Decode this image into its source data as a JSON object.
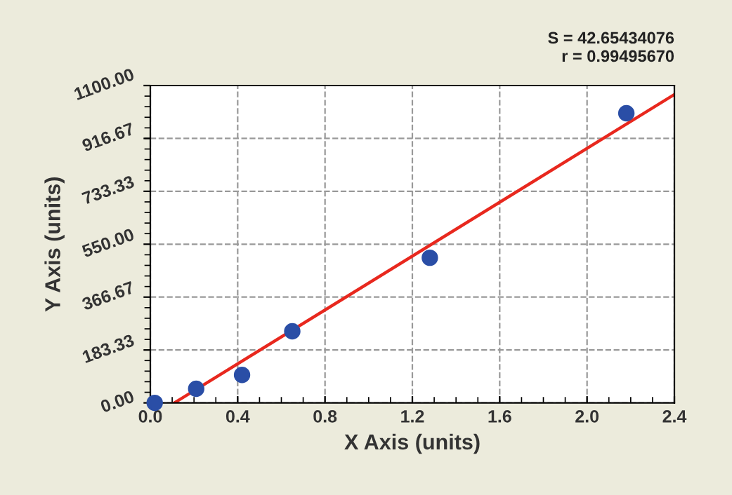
{
  "chart_data": {
    "type": "scatter",
    "xlabel": "X Axis (units)",
    "ylabel": "Y Axis (units)",
    "annotations": [
      "S = 42.65434076",
      "r = 0.99495670"
    ],
    "x": [
      0.02,
      0.21,
      0.42,
      0.65,
      1.28,
      2.18
    ],
    "series": [
      {
        "color": "#2a4ea6",
        "marker": "circle",
        "values": [
          0,
          49,
          97,
          248,
          503,
          1004
        ]
      },
      {
        "type": "line",
        "marker": "none",
        "line_style": "solid",
        "color": "#e8281e",
        "x": [
          0.11,
          2.4
        ],
        "values": [
          0,
          1069
        ]
      }
    ],
    "xlim": [
      0,
      2.4
    ],
    "xticks": [
      {
        "value": 0,
        "label": "0.0"
      },
      0.4,
      0.8,
      1.2,
      1.6,
      {
        "value": 2.0,
        "label": "2.0"
      },
      2.4
    ],
    "ylim": [
      0,
      1100
    ],
    "yticks": [
      {
        "value": 0,
        "label": "0.00"
      },
      {
        "value": 183.33,
        "label": "183.33"
      },
      {
        "value": 366.67,
        "label": "366.67"
      },
      {
        "value": 550,
        "label": "550.00"
      },
      {
        "value": 733.33,
        "label": "733.33"
      },
      {
        "value": 916.67,
        "label": "916.67"
      },
      {
        "value": 1100,
        "label": "1100.00"
      }
    ],
    "grid": true
  }
}
